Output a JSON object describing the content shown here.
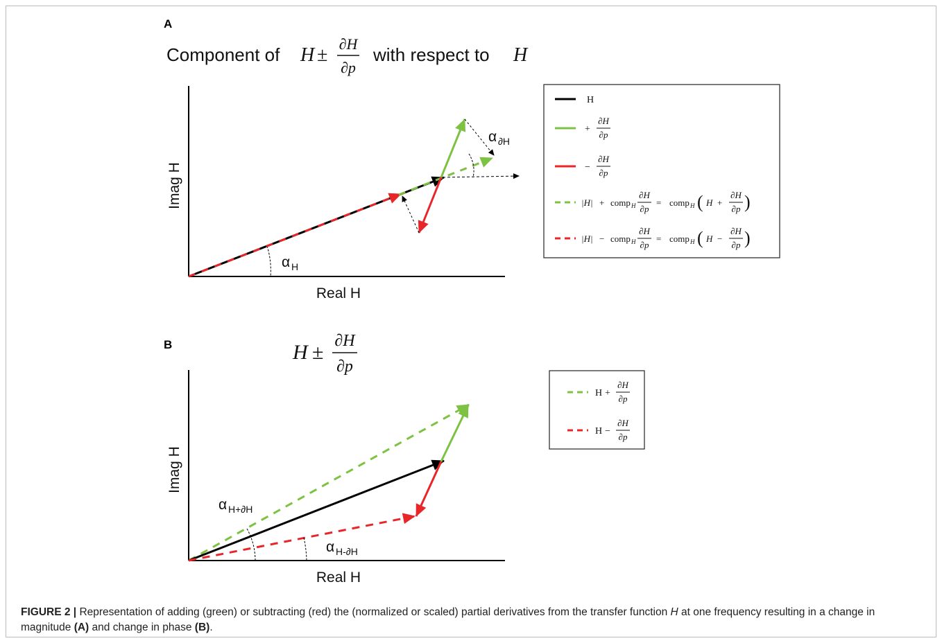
{
  "panel_a": {
    "letter": "A",
    "title_prefix": "Component of",
    "title_suffix": "with respect to",
    "x_axis_label": "Real H",
    "y_axis_label": "Imag H",
    "angle_label": "α",
    "angle_sub": "H",
    "angle_dH_sub": "∂H",
    "legend": {
      "items": [
        {
          "color": "#000000",
          "dash": "solid",
          "text": "H"
        },
        {
          "color": "#7dc242",
          "dash": "solid",
          "text": "+ ∂H/∂p"
        },
        {
          "color": "#e8262a",
          "dash": "solid",
          "text": "− ∂H/∂p"
        },
        {
          "color": "#7dc242",
          "dash": "dashed",
          "text": "|H| + comp_H ∂H/∂p = comp_H (H + ∂H/∂p)"
        },
        {
          "color": "#e8262a",
          "dash": "dashed",
          "text": "|H| − comp_H ∂H/∂p = comp_H (H − ∂H/∂p)"
        }
      ]
    }
  },
  "panel_b": {
    "letter": "B",
    "x_axis_label": "Real H",
    "y_axis_label": "Imag H",
    "angle_plus_sub": "H+∂H",
    "angle_minus_sub": "H-∂H",
    "legend": {
      "items": [
        {
          "color": "#7dc242",
          "dash": "dashed",
          "text": "H + ∂H/∂p"
        },
        {
          "color": "#e8262a",
          "dash": "dashed",
          "text": "H − ∂H/∂p"
        }
      ]
    }
  },
  "math": {
    "H": "H",
    "pm": "±",
    "plus": "+",
    "minus": "−",
    "num": "∂H",
    "den": "∂p",
    "abs_H": "|H|",
    "comp": "comp",
    "comp_sub": "H",
    "eq": "=",
    "lparen": "(",
    "rparen": ")",
    "H_upright": "H"
  },
  "caption": {
    "label": "FIGURE 2 |",
    "text_1": " Representation of adding (green) or subtracting (red) the (normalized or scaled) partial derivatives from the transfer function ",
    "italic_H": "H",
    "text_2": " at one frequency resulting in a change in magnitude ",
    "bold_A": "(A)",
    "text_3": " and change in phase ",
    "bold_B": "(B)",
    "text_4": "."
  },
  "colors": {
    "green": "#7dc242",
    "red": "#e8262a",
    "black": "#000000",
    "frame": "#b8bcc2"
  }
}
